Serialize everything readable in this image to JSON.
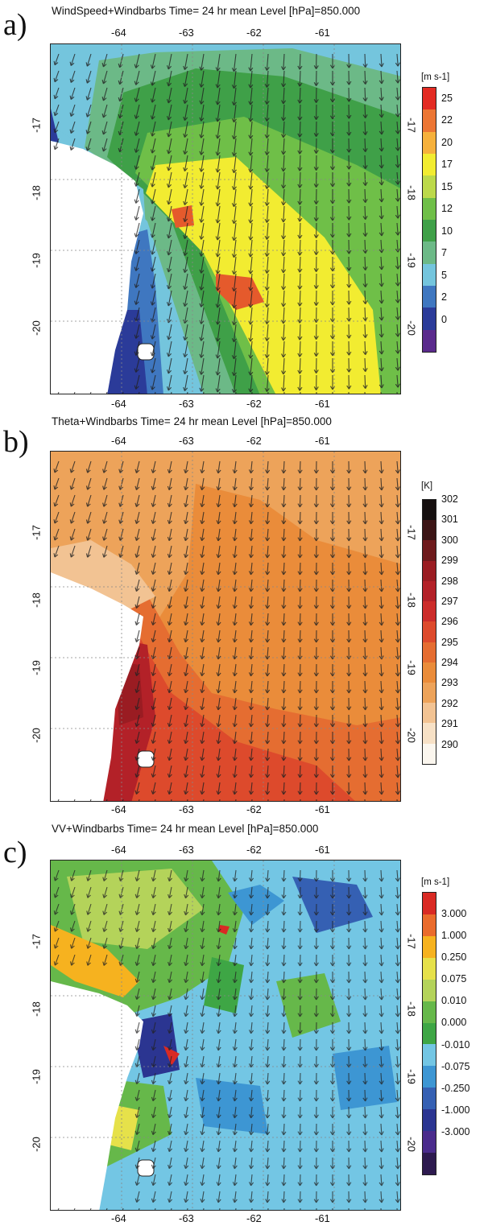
{
  "panels": [
    {
      "letter": "a)",
      "title": "WindSpeed+Windbarbs Time= 24 hr mean Level [hPa]=850.000",
      "colorbar_unit": "[m s-1]",
      "colorbar_labels": [
        "25",
        "22",
        "20",
        "17",
        "15",
        "12",
        "10",
        "7",
        "5",
        "2",
        "0"
      ],
      "colorbar_colors": [
        "#e32b23",
        "#ec7634",
        "#f6b13c",
        "#f2ec31",
        "#bcd94a",
        "#6fbf48",
        "#3fa048",
        "#6cb987",
        "#74c5dd",
        "#3f77c0",
        "#2b3b99",
        "#5a2a8c"
      ]
    },
    {
      "letter": "b)",
      "title": "Theta+Windbarbs Time= 24 hr mean Level [hPa]=850.000",
      "colorbar_unit": "[K]",
      "colorbar_labels": [
        "302",
        "301",
        "300",
        "299",
        "298",
        "297",
        "296",
        "295",
        "294",
        "293",
        "292",
        "291",
        "290"
      ],
      "colorbar_colors": [
        "#161010",
        "#3b1415",
        "#6e1a1c",
        "#9a1c22",
        "#b32128",
        "#cc2c2a",
        "#dd4a2c",
        "#e56d31",
        "#ea8c3a",
        "#eda35a",
        "#f2c393",
        "#f7e1c6",
        "#fbf6ee"
      ]
    },
    {
      "letter": "c)",
      "title": "VV+Windbarbs Time= 24 hr mean Level [hPa]=850.000",
      "colorbar_unit": "[m s-1]",
      "colorbar_labels": [
        "3.000",
        "1.000",
        "0.250",
        "0.075",
        "0.010",
        "0.000",
        "-0.010",
        "-0.075",
        "-0.250",
        "-1.000",
        "-3.000"
      ],
      "colorbar_colors": [
        "#d92a24",
        "#ea6b2c",
        "#f6b21f",
        "#e6e14a",
        "#b4d35a",
        "#66b84a",
        "#3ea645",
        "#73c6e4",
        "#3d96d3",
        "#3560b3",
        "#2b3591",
        "#4a2b8c",
        "#2d1a4f"
      ]
    }
  ],
  "x_ticks": [
    "-64",
    "-63",
    "-62",
    "-61"
  ],
  "y_ticks": [
    "-17",
    "-18",
    "-19",
    "-20"
  ]
}
